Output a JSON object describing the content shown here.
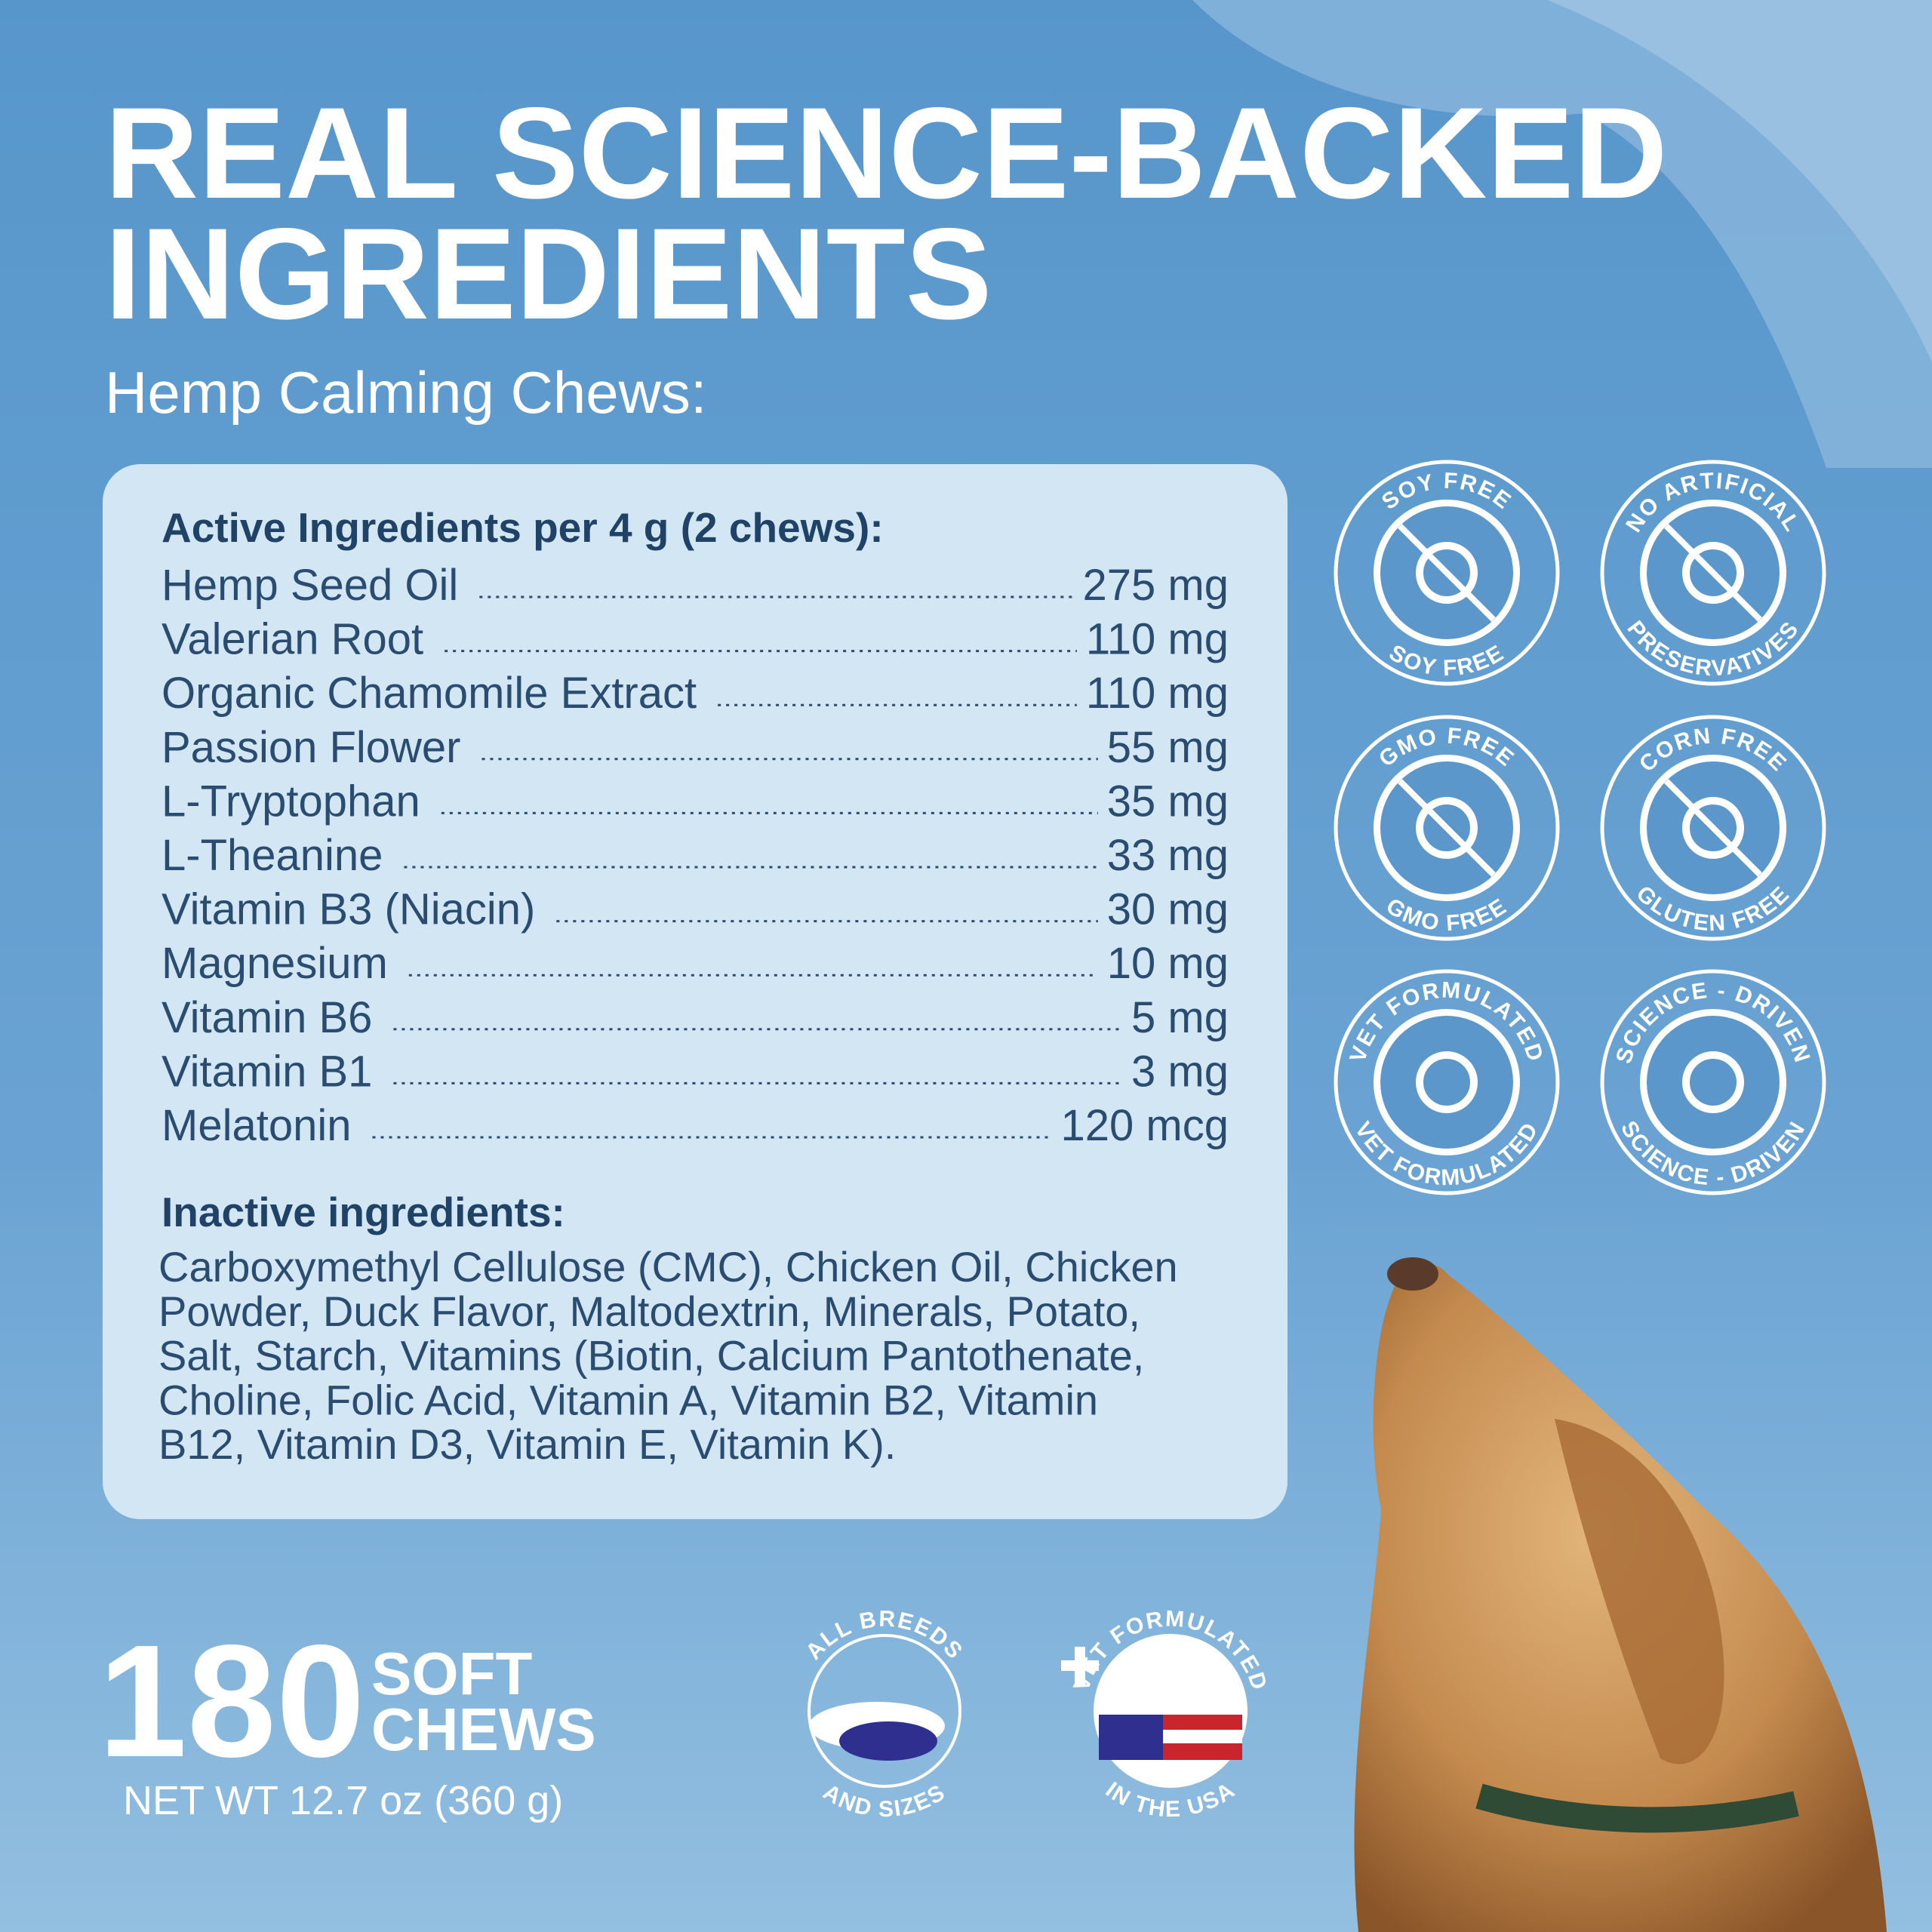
{
  "header": {
    "title_lines": [
      "REAL SCIENCE-BACKED",
      "INGREDIENTS"
    ],
    "subtitle": "Hemp Calming Chews:"
  },
  "panel": {
    "active_heading": "Active Ingredients per 4 g (2 chews):",
    "active_rows": [
      {
        "name": "Hemp Seed Oil",
        "amount": "275 mg"
      },
      {
        "name": "Valerian Root",
        "amount": "110 mg"
      },
      {
        "name": "Organic Chamomile Extract",
        "amount": "110 mg"
      },
      {
        "name": "Passion Flower",
        "amount": "55 mg"
      },
      {
        "name": "L-Tryptophan",
        "amount": "35 mg"
      },
      {
        "name": "L-Theanine",
        "amount": "33 mg"
      },
      {
        "name": "Vitamin B3 (Niacin)",
        "amount": "30 mg"
      },
      {
        "name": "Magnesium",
        "amount": "10 mg"
      },
      {
        "name": "Vitamin B6",
        "amount": "5 mg"
      },
      {
        "name": "Vitamin B1",
        "amount": "3 mg"
      },
      {
        "name": "Melatonin",
        "amount": "120 mcg"
      }
    ],
    "inactive_heading": "Inactive ingredients:",
    "inactive_lines": [
      "Carboxymethyl Cellulose (CMC), Chicken Oil, Chicken",
      "Powder, Duck Flavor, Maltodextrin, Minerals, Potato,",
      "Salt, Starch, Vitamins (Biotin, Calcium Pantothenate,",
      "Choline, Folic Acid, Vitamin A, Vitamin B2, Vitamin",
      "B12, Vitamin D3, Vitamin E, Vitamin K)."
    ]
  },
  "badges": [
    {
      "top": "SOY  FREE",
      "bottom": "SOY  FREE"
    },
    {
      "top": "NO ARTIFICIAL",
      "bottom": "PRESERVATIVES"
    },
    {
      "top": "GMO  FREE",
      "bottom": "GMO  FREE"
    },
    {
      "top": "CORN  FREE",
      "bottom": "GLUTEN  FREE"
    },
    {
      "top": "VET FORMULATED",
      "bottom": "VET FORMULATED"
    },
    {
      "top": "SCIENCE - DRIVEN",
      "bottom": "SCIENCE - DRIVEN"
    }
  ],
  "footer": {
    "count": "180",
    "unit_lines": [
      "SOFT",
      "CHEWS"
    ],
    "net_weight": "NET WT 12.7 oz (360 g)"
  },
  "seals": [
    {
      "top": "ALL BREEDS",
      "bottom": "AND SIZES"
    },
    {
      "top": "VET FORMULATED",
      "bottom": "IN THE USA"
    }
  ]
}
